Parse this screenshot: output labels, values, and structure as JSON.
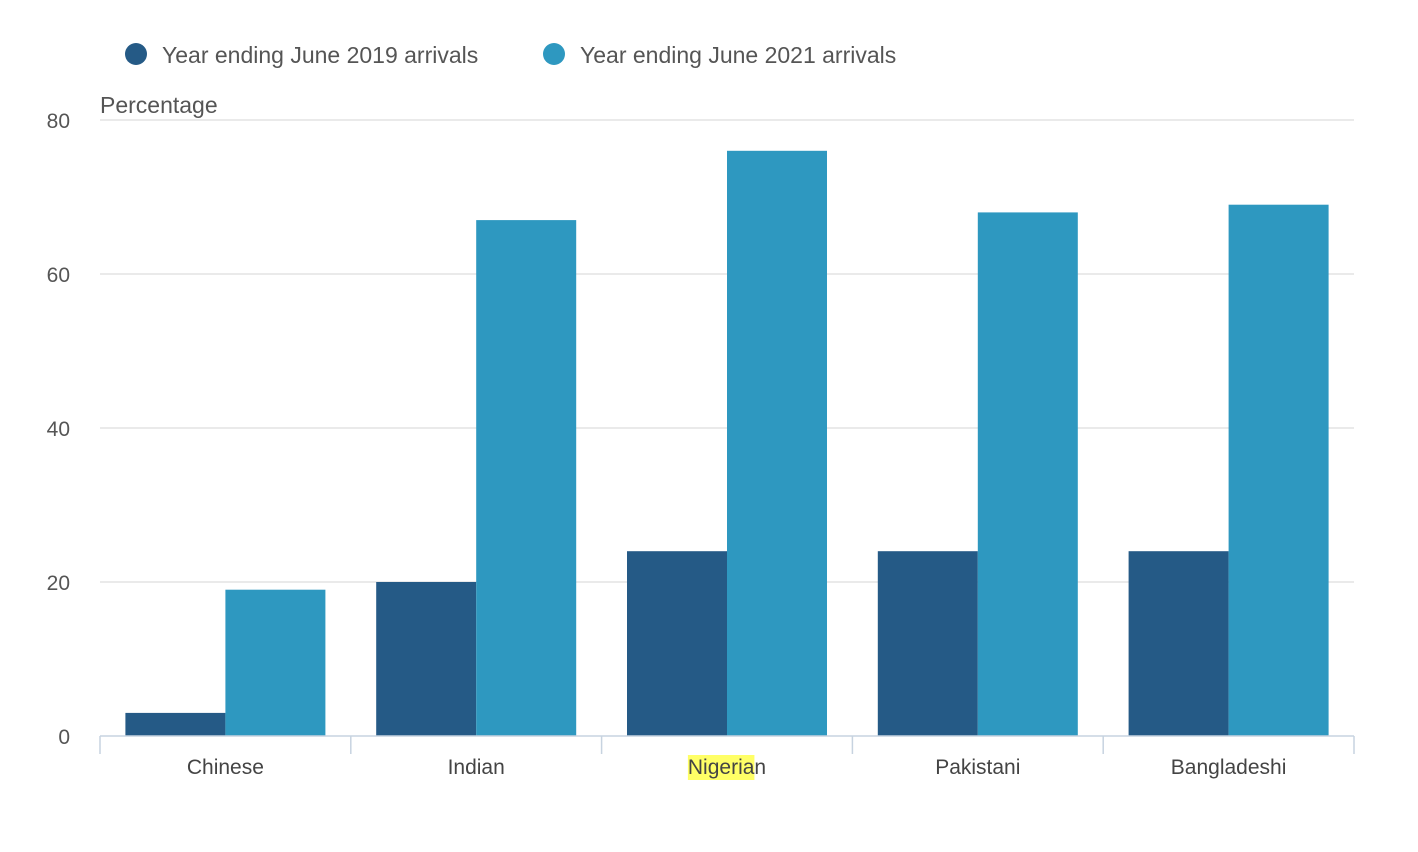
{
  "chart_data": {
    "type": "bar",
    "title": "",
    "xlabel": "",
    "ylabel": "Percentage",
    "ylim": [
      0,
      80
    ],
    "yticks": [
      0,
      20,
      40,
      60,
      80
    ],
    "grid": true,
    "legend_position": "top-left",
    "categories": [
      "Chinese",
      "Indian",
      "Nigerian",
      "Pakistani",
      "Bangladeshi"
    ],
    "highlighted_text": "Nigeria",
    "series": [
      {
        "name": "Year ending June 2019 arrivals",
        "color": "#255A86",
        "values": [
          3,
          20,
          24,
          24,
          24
        ]
      },
      {
        "name": "Year ending June 2021 arrivals",
        "color": "#2E98C0",
        "values": [
          19,
          67,
          76,
          68,
          69
        ]
      }
    ]
  },
  "colors": {
    "highlight": "#ffff66",
    "grid": "#dddddd",
    "axis": "#c7d3e0"
  }
}
